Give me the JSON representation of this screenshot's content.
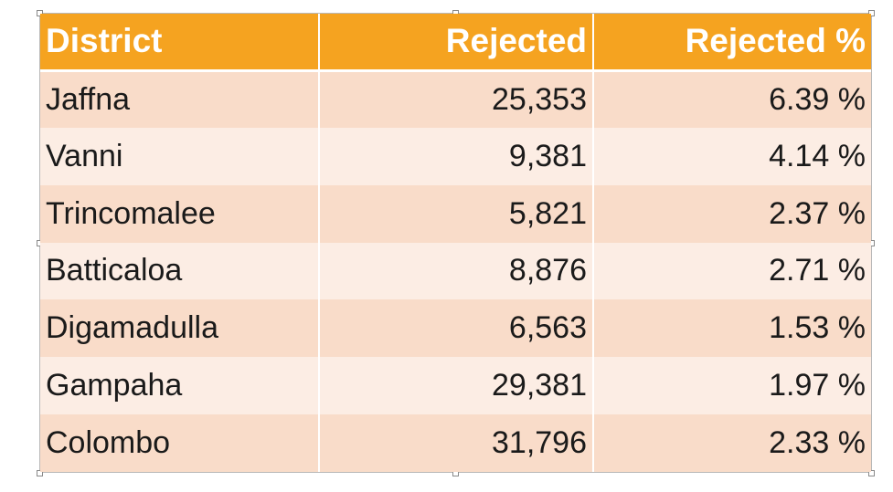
{
  "table": {
    "headers": {
      "district": "District",
      "rejected": "Rejected",
      "rejected_pct": "Rejected %"
    },
    "rows": [
      {
        "district": "Jaffna",
        "rejected": "25,353",
        "rejected_pct": "6.39 %"
      },
      {
        "district": "Vanni",
        "rejected": "9,381",
        "rejected_pct": "4.14 %"
      },
      {
        "district": "Trincomalee",
        "rejected": "5,821",
        "rejected_pct": "2.37 %"
      },
      {
        "district": "Batticaloa",
        "rejected": "8,876",
        "rejected_pct": "2.71 %"
      },
      {
        "district": "Digamadulla",
        "rejected": "6,563",
        "rejected_pct": "1.53 %"
      },
      {
        "district": "Gampaha",
        "rejected": "29,381",
        "rejected_pct": "1.97 %"
      },
      {
        "district": "Colombo",
        "rejected": "31,796",
        "rejected_pct": "2.33 %"
      }
    ]
  },
  "colors": {
    "header_bg": "#f5a320",
    "row_band_dark": "#f9dcc9",
    "row_band_light": "#fcede4"
  }
}
